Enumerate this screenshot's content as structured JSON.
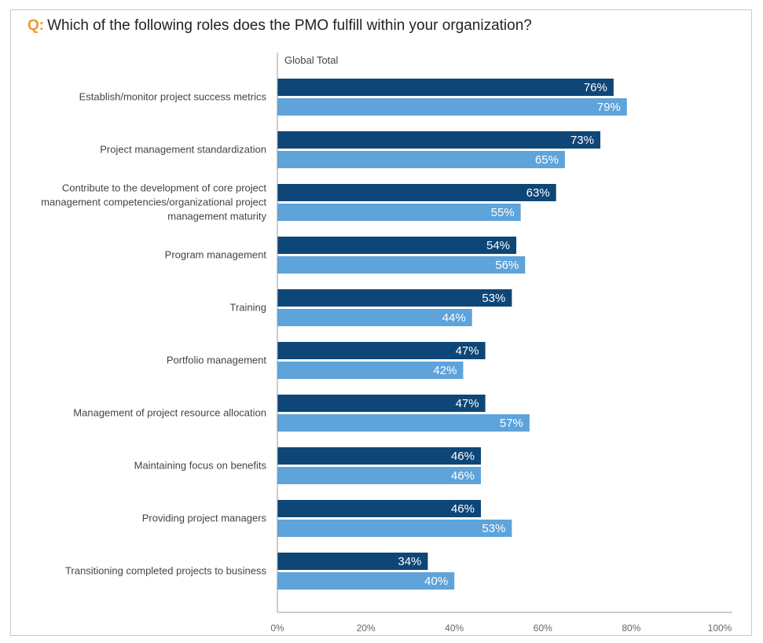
{
  "question": {
    "prefix": "Q:",
    "text": "Which of the following roles does the PMO fulfill within your organization?"
  },
  "series_label": "Global Total",
  "colors": {
    "series_a": "#0e4677",
    "series_b": "#5ea3da",
    "accent": "#f0962a"
  },
  "chart_data": {
    "type": "bar",
    "orientation": "horizontal",
    "title": "Which of the following roles does the PMO fulfill within your organization?",
    "categories": [
      [
        "Establish/monitor project success metrics"
      ],
      [
        "Project management standardization"
      ],
      [
        "Contribute to the development of core project",
        "management competencies/organizational project",
        "management maturity"
      ],
      [
        "Program management"
      ],
      [
        "Training"
      ],
      [
        "Portfolio management"
      ],
      [
        "Management of project resource allocation"
      ],
      [
        "Maintaining focus on benefits"
      ],
      [
        "Providing project managers"
      ],
      [
        "Transitioning completed projects to business"
      ]
    ],
    "series": [
      {
        "values": [
          76,
          73,
          63,
          54,
          53,
          47,
          47,
          46,
          46,
          34
        ],
        "color": "#0e4677"
      },
      {
        "values": [
          79,
          65,
          55,
          56,
          44,
          42,
          57,
          46,
          53,
          40
        ],
        "color": "#5ea3da"
      }
    ],
    "value_suffix": "%",
    "xlim": [
      0,
      100
    ],
    "xticks": [
      "0%",
      "20%",
      "40%",
      "60%",
      "80%",
      "100%"
    ],
    "grid": false,
    "legend": "none"
  }
}
